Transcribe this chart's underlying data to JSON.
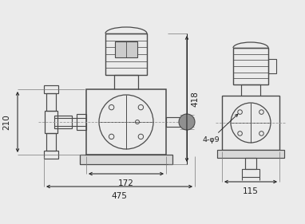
{
  "bg_color": "#ebebeb",
  "line_color": "#4a4a4a",
  "dim_color": "#222222",
  "fig_w": 3.82,
  "fig_h": 2.81,
  "dim_210": "210",
  "dim_418": "418",
  "dim_172": "172",
  "dim_475": "475",
  "dim_115": "115",
  "dim_4phi9": "4-φ9"
}
